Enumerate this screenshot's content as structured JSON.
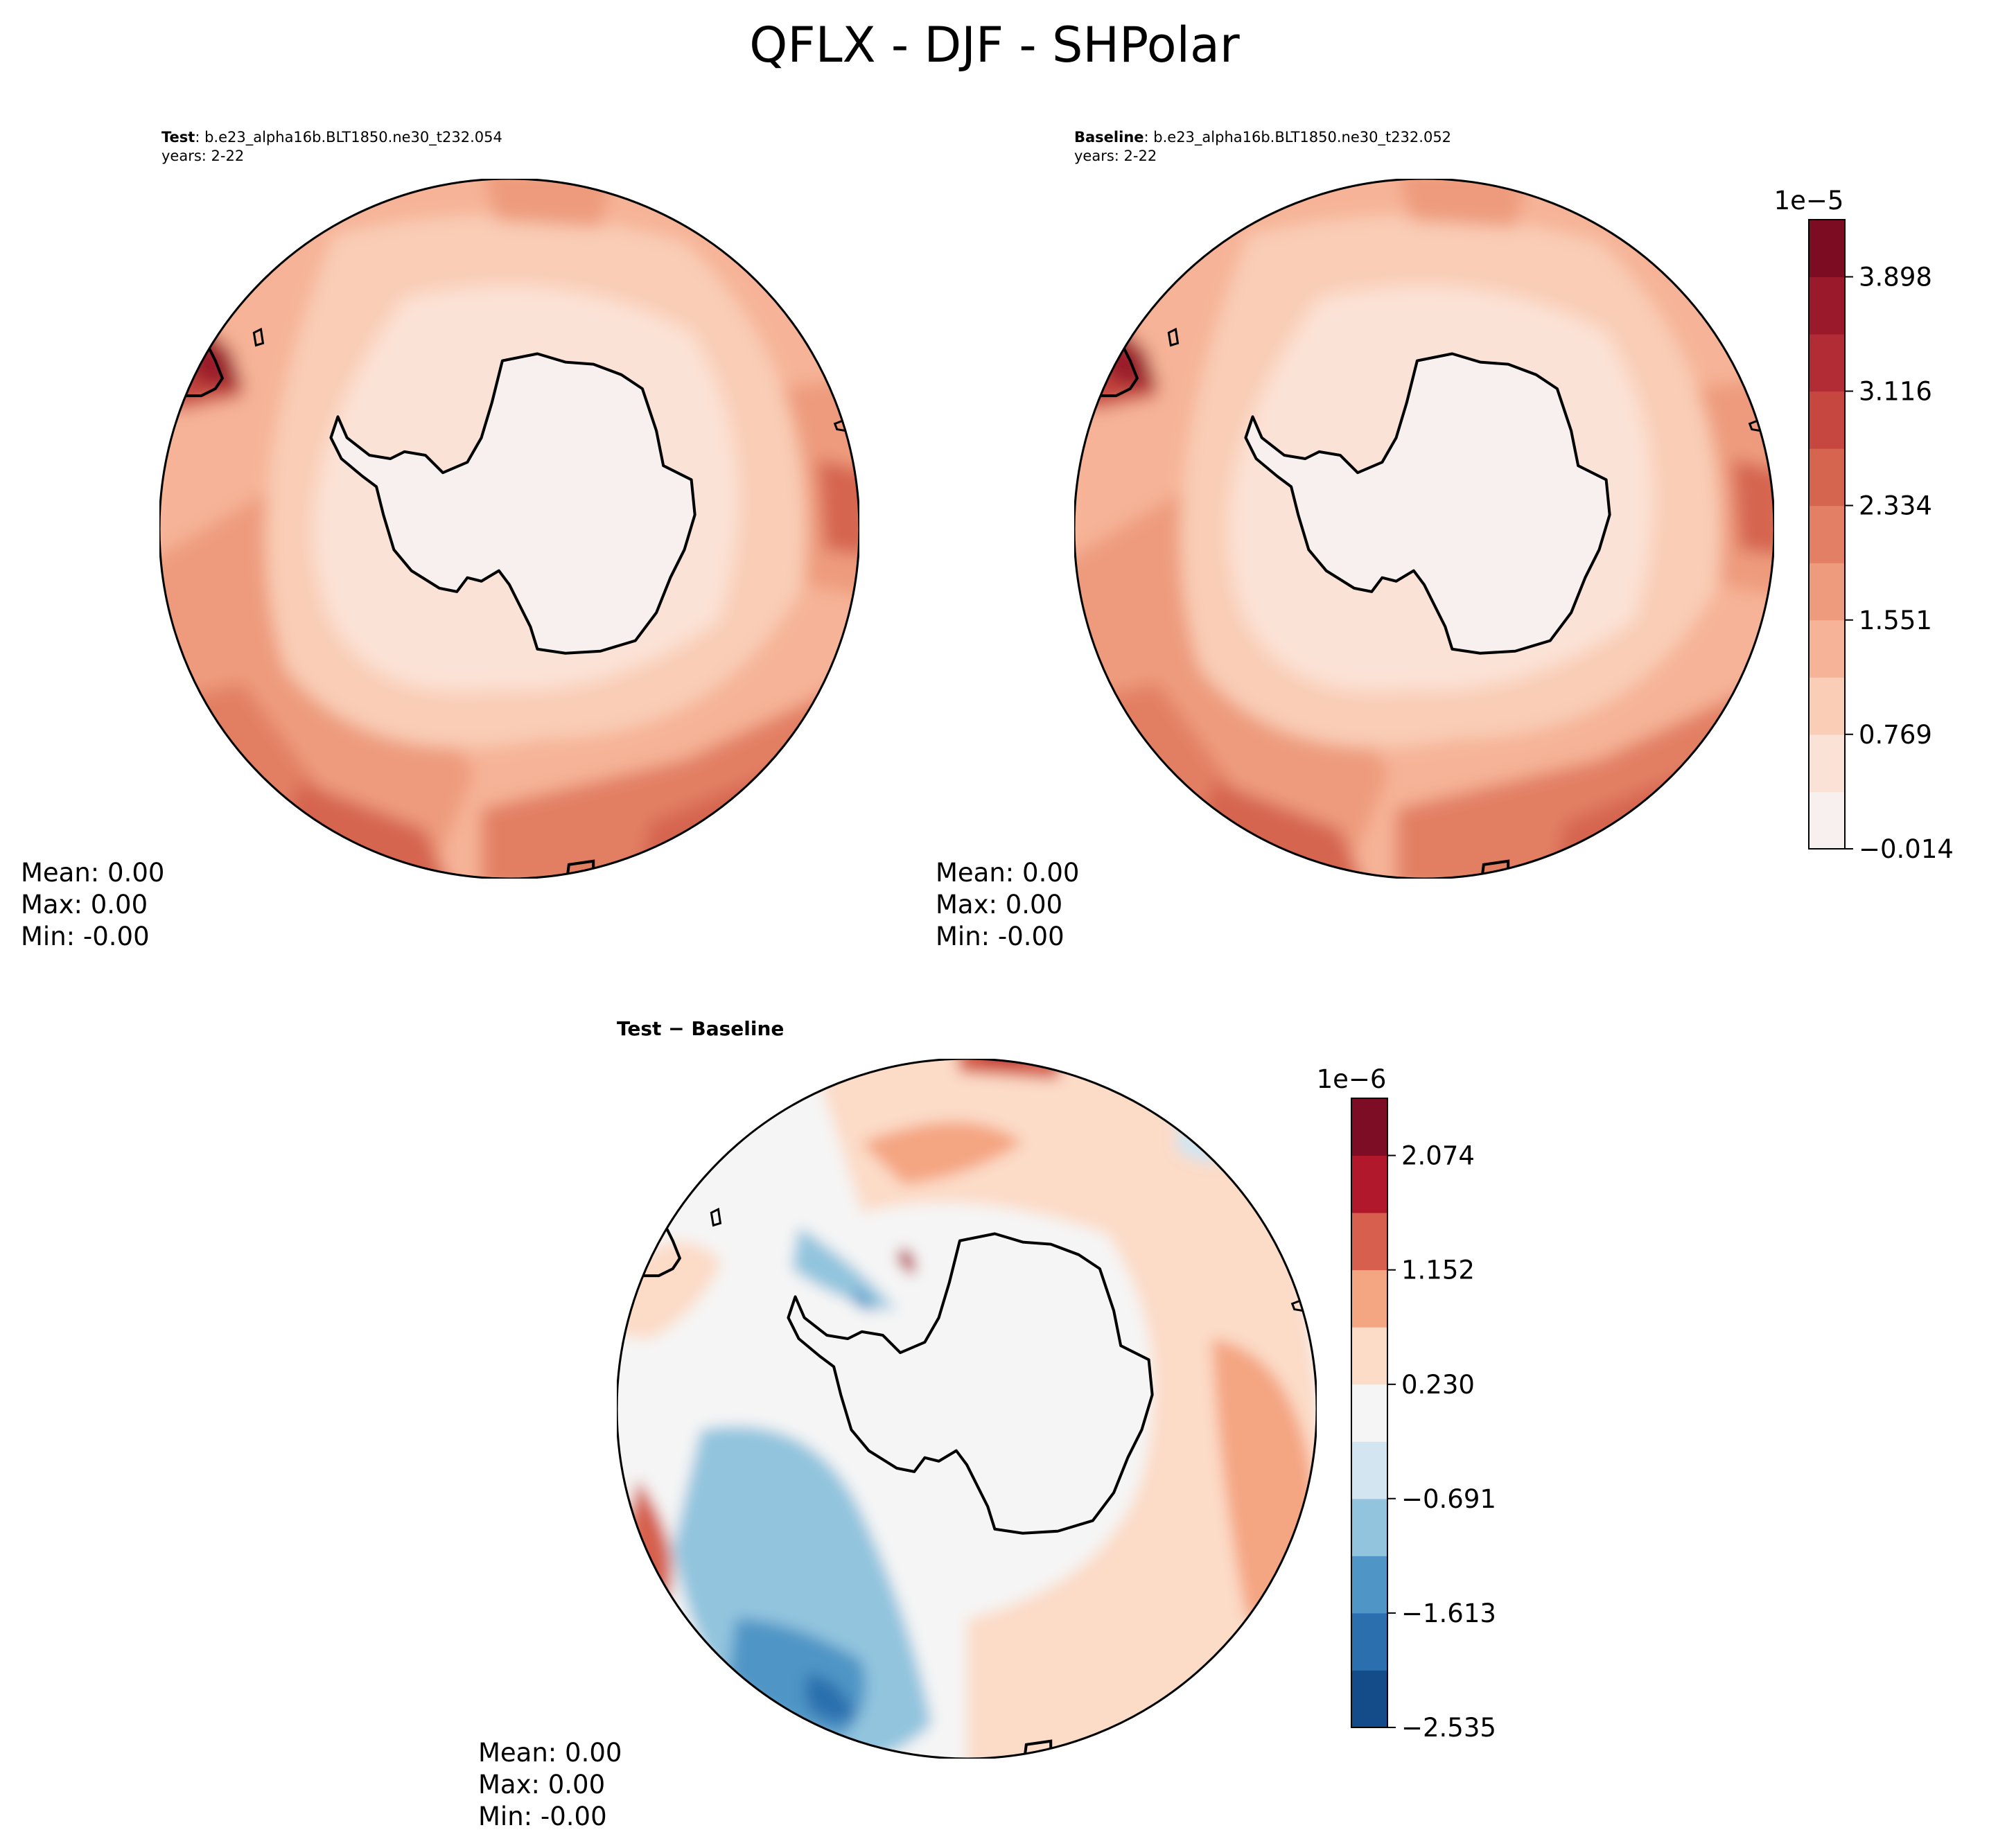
{
  "title": "QFLX - DJF - SHPolar",
  "chart_data": [
    {
      "type": "contour-map",
      "panel": "test",
      "title_bold": "Test",
      "title_rest": ": b.e23_alpha16b.BLT1850.ne30_t232.054",
      "years": "years: 2-22",
      "stats": {
        "mean": "Mean:  0.00",
        "max": "Max:  0.00",
        "min": "Min: -0.00"
      }
    },
    {
      "type": "contour-map",
      "panel": "baseline",
      "title_bold": "Baseline",
      "title_rest": ": b.e23_alpha16b.BLT1850.ne30_t232.052",
      "years": "years: 2-22",
      "stats": {
        "mean": "Mean:  0.00",
        "max": "Max:  0.00",
        "min": "Min: -0.00"
      },
      "colorbar": {
        "exponent": "1e−5",
        "range": [
          -0.014,
          4.289
        ],
        "ticks": [
          -0.014,
          0.769,
          1.551,
          2.334,
          3.116,
          3.898
        ],
        "tick_labels": [
          "−0.014",
          "0.769",
          "1.551",
          "2.334",
          "3.116",
          "3.898"
        ],
        "colors": [
          "#f7f0ee",
          "#fbe2d6",
          "#f9cdb6",
          "#f6b397",
          "#ee9b7d",
          "#e27f64",
          "#d5654f",
          "#c6473f",
          "#b12c34",
          "#9a1a2c",
          "#7b0c22"
        ]
      }
    },
    {
      "type": "contour-map",
      "panel": "difference",
      "title": "Test − Baseline",
      "stats": {
        "mean": "Mean:  0.00",
        "max": "Max:  0.00",
        "min": "Min: -0.00"
      },
      "colorbar": {
        "exponent": "1e−6",
        "range": [
          -2.535,
          2.535
        ],
        "ticks": [
          -2.535,
          -1.613,
          -0.691,
          0.23,
          1.152,
          2.074
        ],
        "tick_labels": [
          "−2.535",
          "−1.613",
          "−0.691",
          "0.230",
          "1.152",
          "2.074"
        ],
        "colors": [
          "#134c88",
          "#2b6fae",
          "#4f95c6",
          "#92c4de",
          "#d2e5f0",
          "#f5f5f5",
          "#fcdbc7",
          "#f4a582",
          "#d6604d",
          "#b2182b",
          "#7d0d24"
        ]
      }
    }
  ]
}
